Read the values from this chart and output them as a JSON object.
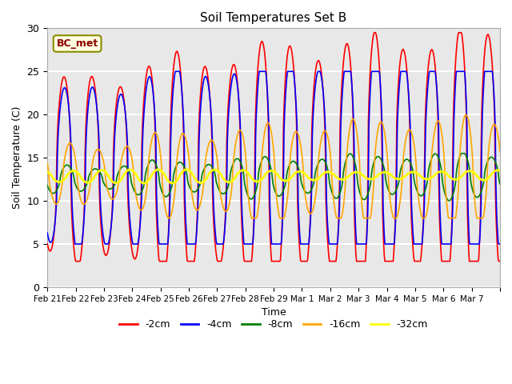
{
  "title": "Soil Temperatures Set B",
  "xlabel": "Time",
  "ylabel": "Soil Temperature (C)",
  "annotation": "BC_met",
  "ylim": [
    0,
    30
  ],
  "series_colors": [
    "red",
    "blue",
    "green",
    "orange",
    "yellow"
  ],
  "series_labels": [
    "-2cm",
    "-4cm",
    "-8cm",
    "-16cm",
    "-32cm"
  ],
  "series_linewidths": [
    1.2,
    1.2,
    1.2,
    1.2,
    2.0
  ],
  "background_color": "#e8e8e8",
  "grid_color": "white",
  "xtick_labels": [
    "Feb 21",
    "Feb 22",
    "Feb 23",
    "Feb 24",
    "Feb 25",
    "Feb 26",
    "Feb 27",
    "Feb 28",
    "Feb 29",
    "Mar 1",
    "Mar 2",
    "Mar 3",
    "Mar 4",
    "Mar 5",
    "Mar 6",
    "Mar 7"
  ],
  "n_days": 16,
  "points_per_day": 48
}
